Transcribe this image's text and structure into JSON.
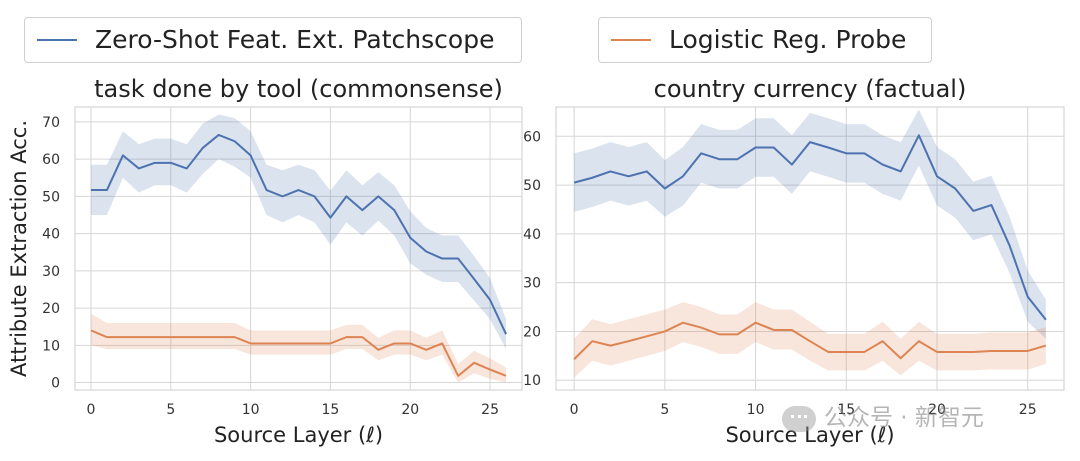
{
  "legend": {
    "series_a_label": "Zero-Shot Feat. Ext. Patchscope",
    "series_b_label": "Logistic Reg. Probe"
  },
  "colors": {
    "series_a": "#4c72b0",
    "series_b": "#dd8452",
    "grid": "#d6d6d6",
    "axes_bg": "#ffffff"
  },
  "watermark": {
    "icon": "wechat-icon",
    "text": "公众号 · 新智元"
  },
  "chart_data": [
    {
      "type": "line",
      "title": "task done by tool (commonsense)",
      "xlabel": "Source Layer (ℓ)",
      "ylabel": "Attribute Extraction Acc.",
      "xlim": [
        -1,
        27
      ],
      "ylim": [
        -2,
        74
      ],
      "xticks": [
        0,
        5,
        10,
        15,
        20,
        25
      ],
      "yticks": [
        0,
        10,
        20,
        30,
        40,
        50,
        60,
        70
      ],
      "x": [
        0,
        1,
        2,
        3,
        4,
        5,
        6,
        7,
        8,
        9,
        10,
        11,
        12,
        13,
        14,
        15,
        16,
        17,
        18,
        19,
        20,
        21,
        22,
        23,
        24,
        25,
        26
      ],
      "series": [
        {
          "name": "Zero-Shot Feat. Ext. Patchscope",
          "color": "#4c72b0",
          "values": [
            51.7,
            51.7,
            61.0,
            57.5,
            59.0,
            59.0,
            57.5,
            63.0,
            66.5,
            64.8,
            61.0,
            51.7,
            50.0,
            51.7,
            50.0,
            44.3,
            50.0,
            46.3,
            50.0,
            46.3,
            38.9,
            35.2,
            33.3,
            33.3,
            27.8,
            22.2,
            13.0
          ],
          "lower": [
            45.0,
            45.0,
            55.0,
            51.0,
            53.0,
            53.0,
            51.0,
            56.0,
            60.0,
            58.0,
            55.0,
            45.0,
            43.0,
            45.0,
            43.0,
            37.0,
            43.0,
            39.5,
            43.5,
            39.5,
            32.0,
            29.0,
            27.0,
            27.0,
            22.0,
            17.0,
            9.0
          ],
          "upper": [
            58.5,
            58.5,
            67.5,
            64.0,
            65.5,
            65.5,
            64.0,
            69.5,
            72.0,
            71.0,
            67.5,
            58.5,
            57.0,
            58.5,
            57.0,
            51.5,
            57.0,
            53.0,
            56.5,
            53.0,
            46.0,
            41.5,
            39.5,
            39.5,
            34.0,
            28.0,
            17.0
          ]
        },
        {
          "name": "Logistic Reg. Probe",
          "color": "#dd8452",
          "values": [
            14.0,
            12.2,
            12.2,
            12.2,
            12.2,
            12.2,
            12.2,
            12.2,
            12.2,
            12.2,
            10.5,
            10.5,
            10.5,
            10.5,
            10.5,
            10.5,
            12.2,
            12.2,
            8.8,
            10.5,
            10.5,
            8.8,
            10.5,
            1.8,
            5.3,
            3.5,
            1.8
          ],
          "lower": [
            10.0,
            9.0,
            9.0,
            9.0,
            9.0,
            9.0,
            9.0,
            9.0,
            9.0,
            9.0,
            7.5,
            7.5,
            7.5,
            7.5,
            7.5,
            7.5,
            9.0,
            9.0,
            6.0,
            7.5,
            7.5,
            6.0,
            7.5,
            0.0,
            2.5,
            1.0,
            0.0
          ],
          "upper": [
            18.5,
            16.0,
            16.0,
            16.0,
            16.0,
            16.0,
            16.0,
            16.0,
            16.0,
            16.0,
            14.0,
            14.0,
            14.0,
            14.0,
            14.0,
            14.0,
            15.5,
            15.5,
            12.0,
            14.0,
            14.0,
            12.0,
            14.0,
            5.0,
            8.5,
            6.5,
            4.0
          ]
        }
      ]
    },
    {
      "type": "line",
      "title": "country currency (factual)",
      "xlabel": "Source Layer (ℓ)",
      "ylabel": "",
      "xlim": [
        -1,
        27
      ],
      "ylim": [
        8,
        66
      ],
      "xticks": [
        0,
        5,
        10,
        15,
        20,
        25
      ],
      "yticks": [
        10,
        20,
        30,
        40,
        50,
        60
      ],
      "x": [
        0,
        1,
        2,
        3,
        4,
        5,
        6,
        7,
        8,
        9,
        10,
        11,
        12,
        13,
        14,
        15,
        16,
        17,
        18,
        19,
        20,
        21,
        22,
        23,
        24,
        25,
        26
      ],
      "series": [
        {
          "name": "Zero-Shot Feat. Ext. Patchscope",
          "color": "#4c72b0",
          "values": [
            50.5,
            51.5,
            52.8,
            51.8,
            52.8,
            49.3,
            51.8,
            56.5,
            55.3,
            55.3,
            57.7,
            57.7,
            54.2,
            58.8,
            57.7,
            56.5,
            56.5,
            54.2,
            52.8,
            60.2,
            51.8,
            49.3,
            44.7,
            45.9,
            37.6,
            27.1,
            22.4
          ],
          "lower": [
            44.5,
            45.5,
            46.8,
            45.8,
            46.8,
            43.5,
            45.8,
            50.5,
            49.3,
            49.3,
            51.7,
            51.7,
            48.2,
            52.8,
            51.7,
            50.5,
            50.5,
            48.2,
            46.8,
            54.0,
            45.8,
            43.3,
            38.7,
            39.9,
            32.0,
            22.0,
            18.5
          ],
          "upper": [
            56.5,
            57.5,
            58.8,
            57.8,
            58.8,
            55.1,
            57.8,
            62.5,
            61.3,
            61.3,
            63.7,
            63.7,
            60.2,
            64.8,
            63.7,
            62.5,
            62.5,
            60.2,
            58.8,
            65.5,
            57.8,
            55.3,
            50.7,
            51.9,
            43.5,
            32.5,
            26.5
          ]
        },
        {
          "name": "Logistic Reg. Probe",
          "color": "#dd8452",
          "values": [
            14.3,
            18.0,
            17.1,
            18.0,
            19.0,
            20.0,
            21.8,
            20.8,
            19.4,
            19.4,
            21.8,
            20.3,
            20.3,
            18.0,
            15.8,
            15.8,
            15.8,
            18.0,
            14.5,
            18.0,
            15.8,
            15.8,
            15.8,
            16.0,
            16.0,
            16.0,
            17.1
          ],
          "lower": [
            10.5,
            14.0,
            13.0,
            14.0,
            15.0,
            16.0,
            17.8,
            16.8,
            15.4,
            15.4,
            17.8,
            16.3,
            16.3,
            14.0,
            12.0,
            12.0,
            12.0,
            14.0,
            11.0,
            14.0,
            12.0,
            12.0,
            12.0,
            12.2,
            12.2,
            12.2,
            13.3
          ],
          "upper": [
            18.5,
            22.5,
            21.5,
            22.5,
            23.5,
            24.5,
            26.0,
            25.0,
            23.5,
            23.5,
            26.0,
            24.5,
            24.5,
            22.0,
            19.5,
            19.5,
            19.5,
            22.0,
            18.5,
            22.0,
            19.5,
            19.5,
            19.5,
            19.8,
            19.8,
            19.8,
            20.9
          ]
        }
      ]
    }
  ]
}
